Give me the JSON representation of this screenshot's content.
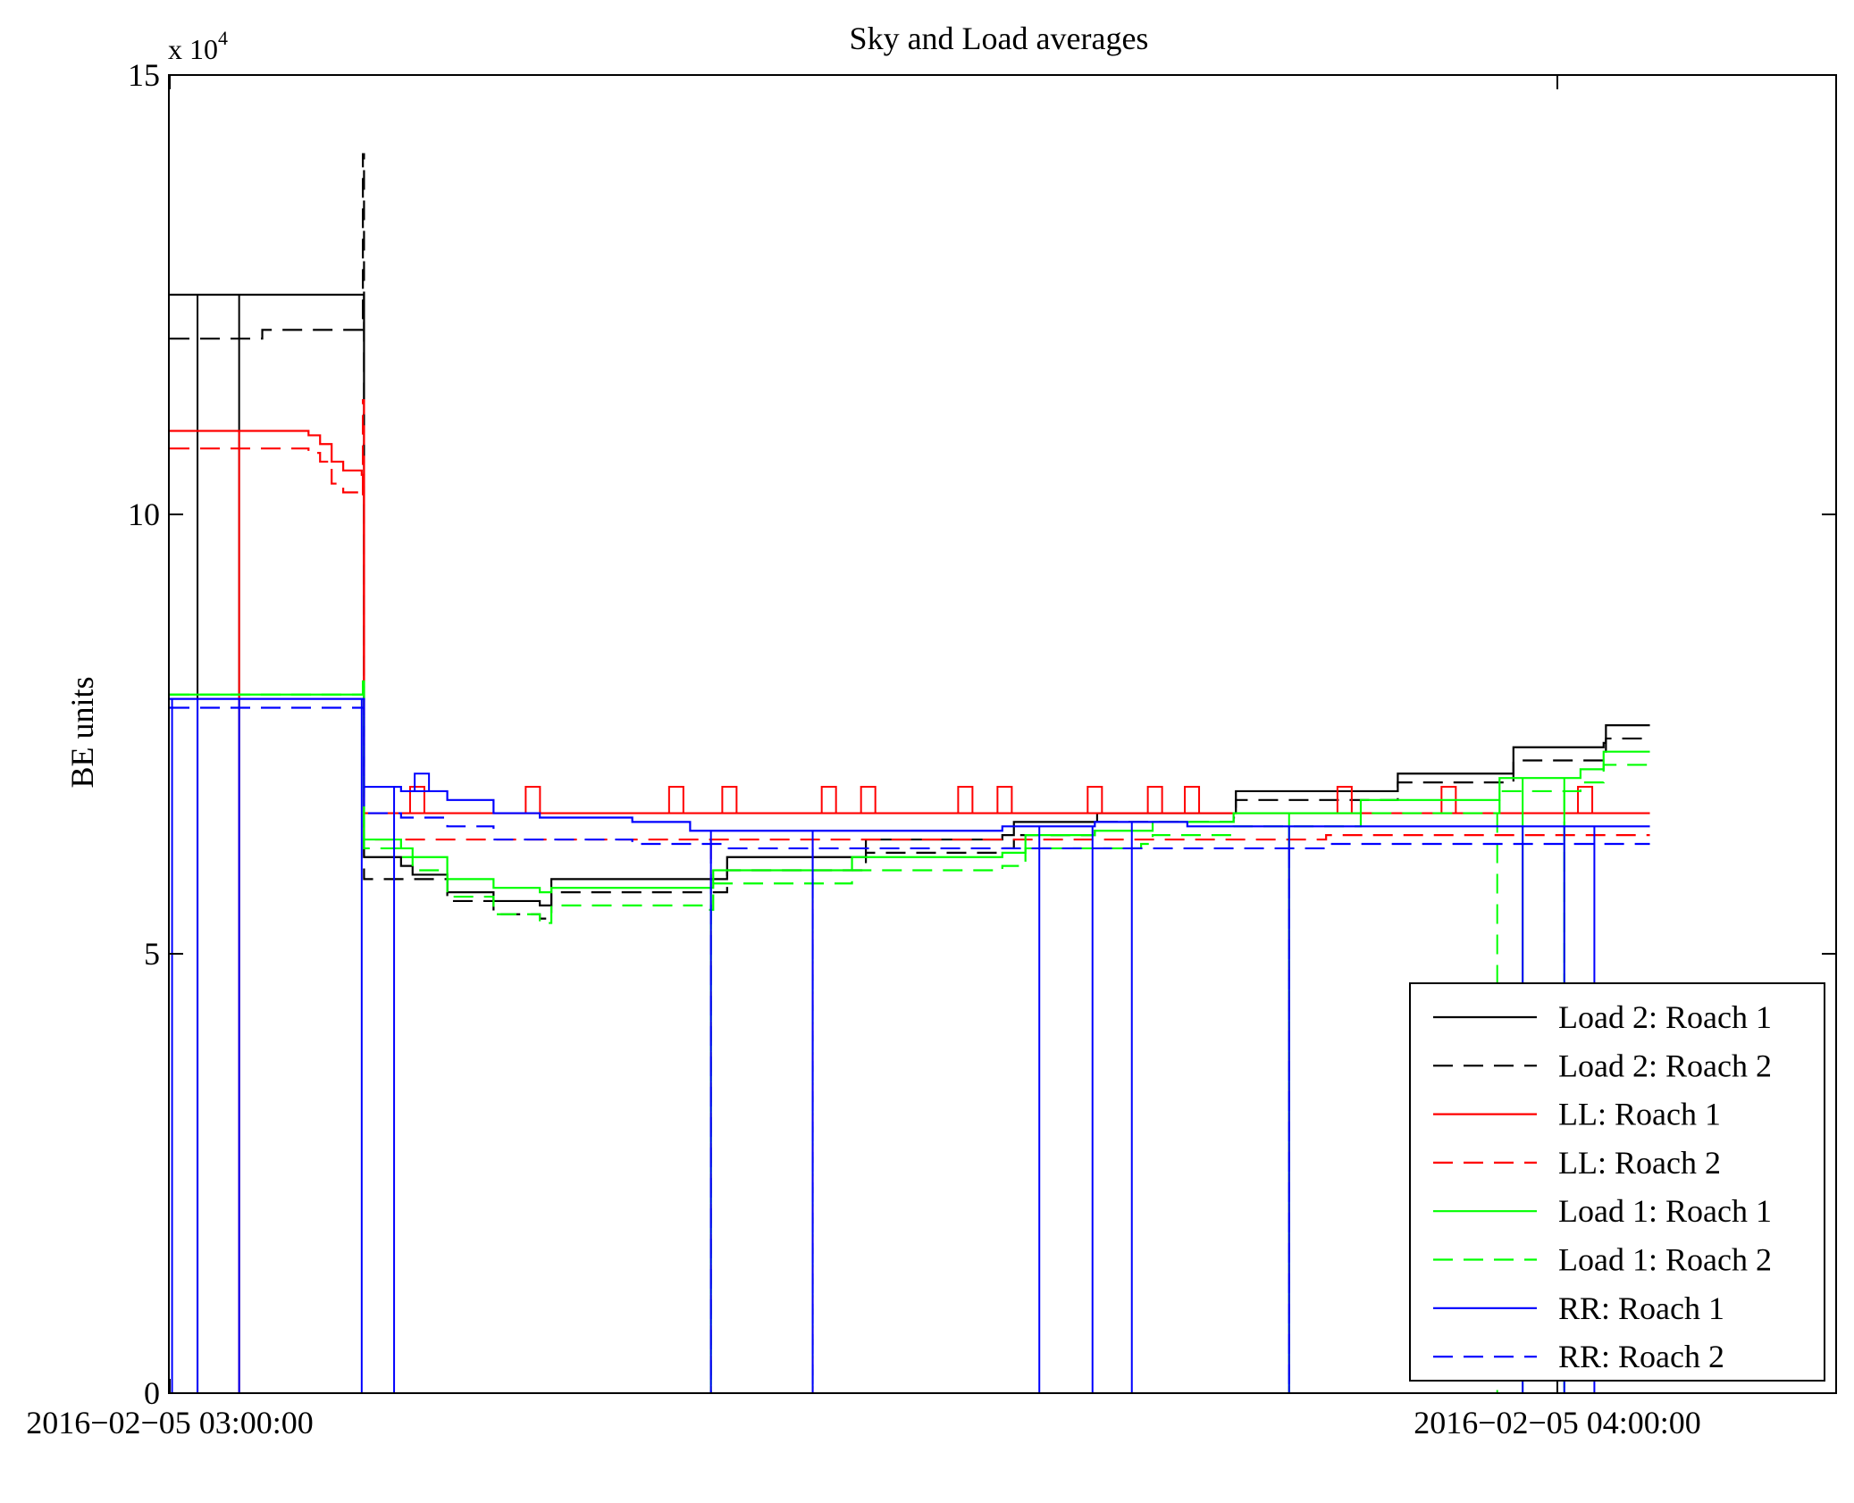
{
  "chart_data": {
    "type": "line",
    "title": "Sky and Load averages",
    "xlabel": "",
    "ylabel": "BE units",
    "y_multiplier": {
      "base": "x 10",
      "exponent": "4"
    },
    "ylim": [
      0,
      15
    ],
    "yticks": [
      0,
      5,
      10,
      15
    ],
    "ytick_labels": [
      "0",
      "5",
      "10",
      "15"
    ],
    "xlim": [
      0,
      72
    ],
    "xticks": [
      0,
      60
    ],
    "xtick_labels": [
      "2016−02−05 03:00:00",
      "2016−02−05 04:00:00"
    ],
    "x_unit": "minutes after 2016-02-05 03:00:00",
    "y_unit": "x 10^4 BE units",
    "legend_position": "lower-right",
    "series": [
      {
        "name": "Load 2: Roach 1",
        "color": "#000000",
        "dash": "solid",
        "points": [
          [
            0,
            12.5
          ],
          [
            8.3,
            12.5
          ],
          [
            8.4,
            6.1
          ],
          [
            10,
            6.0
          ],
          [
            10.5,
            5.9
          ],
          [
            12,
            5.7
          ],
          [
            14,
            5.6
          ],
          [
            16,
            5.55
          ],
          [
            16.5,
            5.85
          ],
          [
            20,
            5.85
          ],
          [
            24,
            5.85
          ],
          [
            24.1,
            6.1
          ],
          [
            30,
            6.1
          ],
          [
            30.1,
            6.3
          ],
          [
            36,
            6.35
          ],
          [
            36.5,
            6.5
          ],
          [
            40,
            6.5
          ],
          [
            40.1,
            6.6
          ],
          [
            46,
            6.6
          ],
          [
            46.1,
            6.85
          ],
          [
            53,
            6.85
          ],
          [
            53.1,
            7.05
          ],
          [
            58,
            7.05
          ],
          [
            58.1,
            7.35
          ],
          [
            62,
            7.4
          ],
          [
            62.1,
            7.6
          ],
          [
            64,
            7.6
          ]
        ],
        "dropouts": [
          1.2,
          3.0
        ]
      },
      {
        "name": "Load 2: Roach 2",
        "color": "#000000",
        "dash": "dashed",
        "points": [
          [
            0,
            12.0
          ],
          [
            4,
            12.1
          ],
          [
            8.3,
            12.1
          ],
          [
            8.35,
            14.1
          ],
          [
            8.4,
            5.85
          ],
          [
            10.5,
            5.85
          ],
          [
            12,
            5.6
          ],
          [
            14,
            5.45
          ],
          [
            16,
            5.4
          ],
          [
            16.5,
            5.7
          ],
          [
            24,
            5.7
          ],
          [
            24.1,
            5.95
          ],
          [
            30,
            5.95
          ],
          [
            30.1,
            6.15
          ],
          [
            36,
            6.2
          ],
          [
            36.5,
            6.35
          ],
          [
            40,
            6.4
          ],
          [
            40.1,
            6.5
          ],
          [
            46,
            6.55
          ],
          [
            46.1,
            6.75
          ],
          [
            53,
            6.75
          ],
          [
            53.1,
            6.95
          ],
          [
            58,
            6.95
          ],
          [
            58.1,
            7.2
          ],
          [
            62,
            7.25
          ],
          [
            62.1,
            7.45
          ],
          [
            64,
            7.45
          ]
        ],
        "dropouts": []
      },
      {
        "name": "LL: Roach 1",
        "color": "#ff0000",
        "dash": "solid",
        "points": [
          [
            0,
            10.95
          ],
          [
            6,
            10.9
          ],
          [
            6.5,
            10.8
          ],
          [
            7,
            10.6
          ],
          [
            7.5,
            10.5
          ],
          [
            8.3,
            10.45
          ],
          [
            8.4,
            6.6
          ],
          [
            20,
            6.6
          ],
          [
            30,
            6.6
          ],
          [
            40,
            6.6
          ],
          [
            50,
            6.6
          ],
          [
            64,
            6.6
          ]
        ],
        "dropouts": [
          3.0
        ],
        "spikes": [
          [
            10.7,
            6.9
          ],
          [
            15.7,
            6.9
          ],
          [
            21.9,
            6.9
          ],
          [
            24.2,
            6.9
          ],
          [
            28.5,
            6.9
          ],
          [
            30.2,
            6.9
          ],
          [
            34.4,
            6.9
          ],
          [
            36.1,
            6.9
          ],
          [
            40,
            6.9
          ],
          [
            42.6,
            6.9
          ],
          [
            44.2,
            6.9
          ],
          [
            50.8,
            6.9
          ],
          [
            55.3,
            6.9
          ],
          [
            61.2,
            6.9
          ]
        ]
      },
      {
        "name": "LL: Roach 2",
        "color": "#ff0000",
        "dash": "dashed",
        "points": [
          [
            0,
            10.75
          ],
          [
            6,
            10.7
          ],
          [
            6.5,
            10.6
          ],
          [
            7,
            10.35
          ],
          [
            7.5,
            10.25
          ],
          [
            8.3,
            10.2
          ],
          [
            8.35,
            11.3
          ],
          [
            8.4,
            6.3
          ],
          [
            20,
            6.3
          ],
          [
            30,
            6.3
          ],
          [
            40,
            6.3
          ],
          [
            50,
            6.35
          ],
          [
            64,
            6.35
          ]
        ],
        "dropouts": [
          23.4,
          27.8,
          48.4
        ]
      },
      {
        "name": "Load 1: Roach 1",
        "color": "#00ff00",
        "dash": "solid",
        "points": [
          [
            0,
            7.95
          ],
          [
            8.3,
            7.95
          ],
          [
            8.35,
            8.1
          ],
          [
            8.4,
            6.3
          ],
          [
            10,
            6.2
          ],
          [
            10.5,
            6.1
          ],
          [
            12,
            5.85
          ],
          [
            14,
            5.75
          ],
          [
            16,
            5.7
          ],
          [
            16.5,
            5.75
          ],
          [
            23,
            5.75
          ],
          [
            23.5,
            5.95
          ],
          [
            29,
            5.95
          ],
          [
            29.5,
            6.1
          ],
          [
            36,
            6.15
          ],
          [
            37,
            6.35
          ],
          [
            40,
            6.4
          ],
          [
            42,
            6.4
          ],
          [
            42.5,
            6.5
          ],
          [
            46,
            6.6
          ],
          [
            51,
            6.6
          ],
          [
            51.5,
            6.75
          ],
          [
            57,
            6.75
          ],
          [
            57.5,
            7.0
          ],
          [
            61,
            7.1
          ],
          [
            62,
            7.3
          ],
          [
            64,
            7.3
          ]
        ],
        "dropouts": [
          23.4,
          48.4,
          58.5,
          60.3
        ]
      },
      {
        "name": "Load 1: Roach 2",
        "color": "#00ff00",
        "dash": "dashed",
        "points": [
          [
            0,
            7.95
          ],
          [
            8.3,
            7.95
          ],
          [
            8.4,
            6.2
          ],
          [
            10,
            6.1
          ],
          [
            10.5,
            5.95
          ],
          [
            12,
            5.65
          ],
          [
            14,
            5.45
          ],
          [
            16,
            5.35
          ],
          [
            16.5,
            5.55
          ],
          [
            23,
            5.5
          ],
          [
            23.5,
            5.8
          ],
          [
            28,
            5.8
          ],
          [
            29.5,
            5.95
          ],
          [
            36,
            6.0
          ],
          [
            37,
            6.2
          ],
          [
            42,
            6.25
          ],
          [
            42.5,
            6.35
          ],
          [
            46,
            6.45
          ],
          [
            51,
            6.45
          ],
          [
            51.5,
            6.6
          ],
          [
            57,
            6.6
          ],
          [
            57.5,
            6.85
          ],
          [
            61,
            6.95
          ],
          [
            62,
            7.15
          ],
          [
            64,
            7.2
          ]
        ],
        "dropouts": [
          23.4,
          27.8,
          48.4,
          57.4,
          60.3
        ]
      },
      {
        "name": "RR: Roach 1",
        "color": "#0000ff",
        "dash": "solid",
        "points": [
          [
            0,
            7.9
          ],
          [
            8.3,
            7.9
          ],
          [
            8.4,
            6.9
          ],
          [
            10,
            6.85
          ],
          [
            12,
            6.75
          ],
          [
            14,
            6.6
          ],
          [
            16,
            6.55
          ],
          [
            20,
            6.5
          ],
          [
            22,
            6.5
          ],
          [
            22.5,
            6.4
          ],
          [
            30,
            6.4
          ],
          [
            35,
            6.4
          ],
          [
            36,
            6.45
          ],
          [
            40,
            6.5
          ],
          [
            44,
            6.45
          ],
          [
            50,
            6.45
          ],
          [
            64,
            6.45
          ]
        ],
        "dropouts": [
          0.1,
          1.2,
          3.0,
          8.3,
          9.7,
          23.4,
          27.8,
          37.6,
          39.9,
          41.6,
          48.4,
          58.5,
          60.3,
          61.6
        ],
        "spikes": [
          [
            10.9,
            7.05
          ]
        ]
      },
      {
        "name": "RR: Roach 2",
        "color": "#0000ff",
        "dash": "dashed",
        "points": [
          [
            0,
            7.8
          ],
          [
            8.3,
            7.8
          ],
          [
            8.4,
            6.6
          ],
          [
            10,
            6.55
          ],
          [
            12,
            6.45
          ],
          [
            14,
            6.3
          ],
          [
            16,
            6.3
          ],
          [
            20,
            6.25
          ],
          [
            24,
            6.2
          ],
          [
            30,
            6.2
          ],
          [
            40,
            6.2
          ],
          [
            50,
            6.25
          ],
          [
            64,
            6.25
          ]
        ],
        "dropouts": [
          23.4,
          27.8,
          48.4
        ]
      }
    ]
  }
}
